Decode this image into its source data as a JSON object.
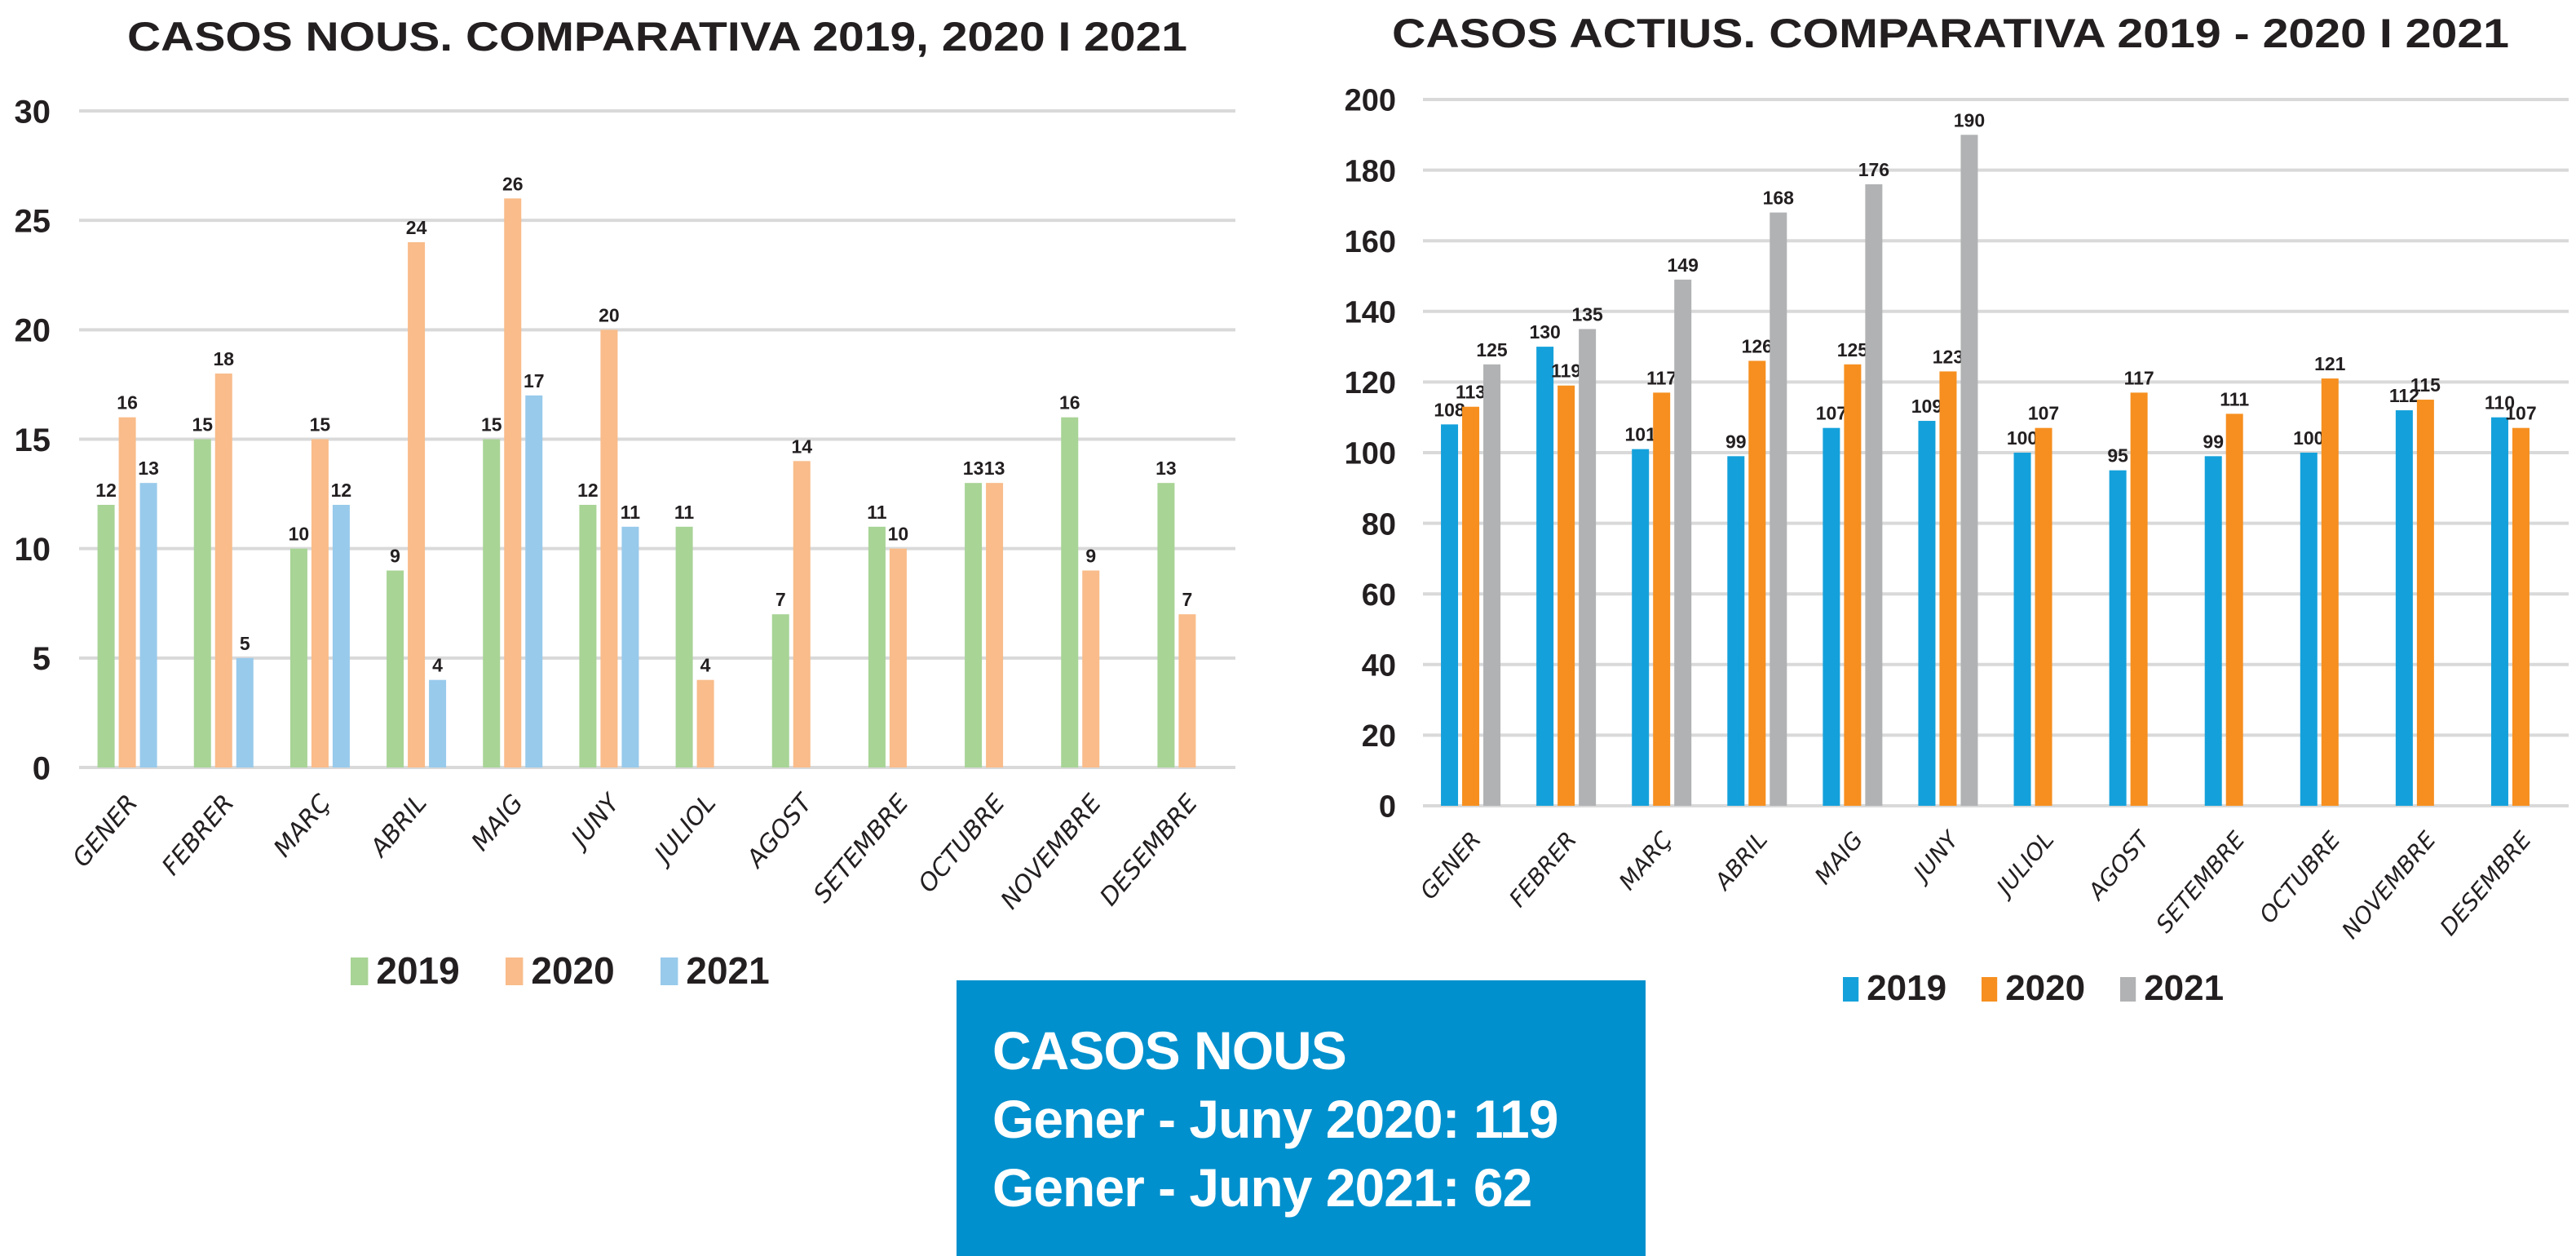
{
  "chart_data": [
    {
      "type": "bar",
      "title": "CASOS NOUS. COMPARATIVA 2019, 2020 I 2021",
      "xlabel": "",
      "ylabel": "",
      "ylim": [
        0,
        30
      ],
      "yticks": [
        0,
        5,
        10,
        15,
        20,
        25,
        30
      ],
      "grid": true,
      "legend_position": "bottom",
      "categories": [
        "GENER",
        "FEBRER",
        "MARÇ",
        "ABRIL",
        "MAIG",
        "JUNY",
        "JULIOL",
        "AGOST",
        "SETEMBRE",
        "OCTUBRE",
        "NOVEMBRE",
        "DESEMBRE"
      ],
      "series": [
        {
          "name": "2019",
          "color": "#A8D496",
          "values": [
            12,
            15,
            10,
            9,
            15,
            12,
            11,
            7,
            11,
            13,
            16,
            13
          ]
        },
        {
          "name": "2020",
          "color": "#F9BC8A",
          "values": [
            16,
            18,
            15,
            24,
            26,
            20,
            4,
            14,
            10,
            13,
            9,
            7
          ]
        },
        {
          "name": "2021",
          "color": "#98CAEB",
          "values": [
            13,
            5,
            12,
            4,
            17,
            11,
            null,
            null,
            null,
            null,
            null,
            null
          ]
        }
      ]
    },
    {
      "type": "bar",
      "title": "CASOS ACTIUS. COMPARATIVA 2019 - 2020 I 2021",
      "xlabel": "",
      "ylabel": "",
      "ylim": [
        0,
        200
      ],
      "yticks": [
        0,
        20,
        40,
        60,
        80,
        100,
        120,
        140,
        160,
        180,
        200
      ],
      "grid": true,
      "legend_position": "bottom",
      "categories": [
        "GENER",
        "FEBRER",
        "MARÇ",
        "ABRIL",
        "MAIG",
        "JUNY",
        "JULIOL",
        "AGOST",
        "SETEMBRE",
        "OCTUBRE",
        "NOVEMBRE",
        "DESEMBRE"
      ],
      "series": [
        {
          "name": "2019",
          "color": "#14A1DB",
          "values": [
            108,
            130,
            101,
            99,
            107,
            109,
            100,
            95,
            99,
            100,
            112,
            110
          ]
        },
        {
          "name": "2020",
          "color": "#F68F1F",
          "values": [
            113,
            119,
            117,
            126,
            125,
            123,
            107,
            117,
            111,
            121,
            115,
            107
          ]
        },
        {
          "name": "2021",
          "color": "#B1B2B4",
          "values": [
            125,
            135,
            149,
            168,
            176,
            190,
            null,
            null,
            null,
            null,
            null,
            null
          ]
        }
      ]
    }
  ],
  "info_box": {
    "heading": "CASOS NOUS",
    "line1": "Gener - Juny 2020: 119",
    "line2": "Gener - Juny 2021: 62",
    "background": "#0090CD"
  }
}
